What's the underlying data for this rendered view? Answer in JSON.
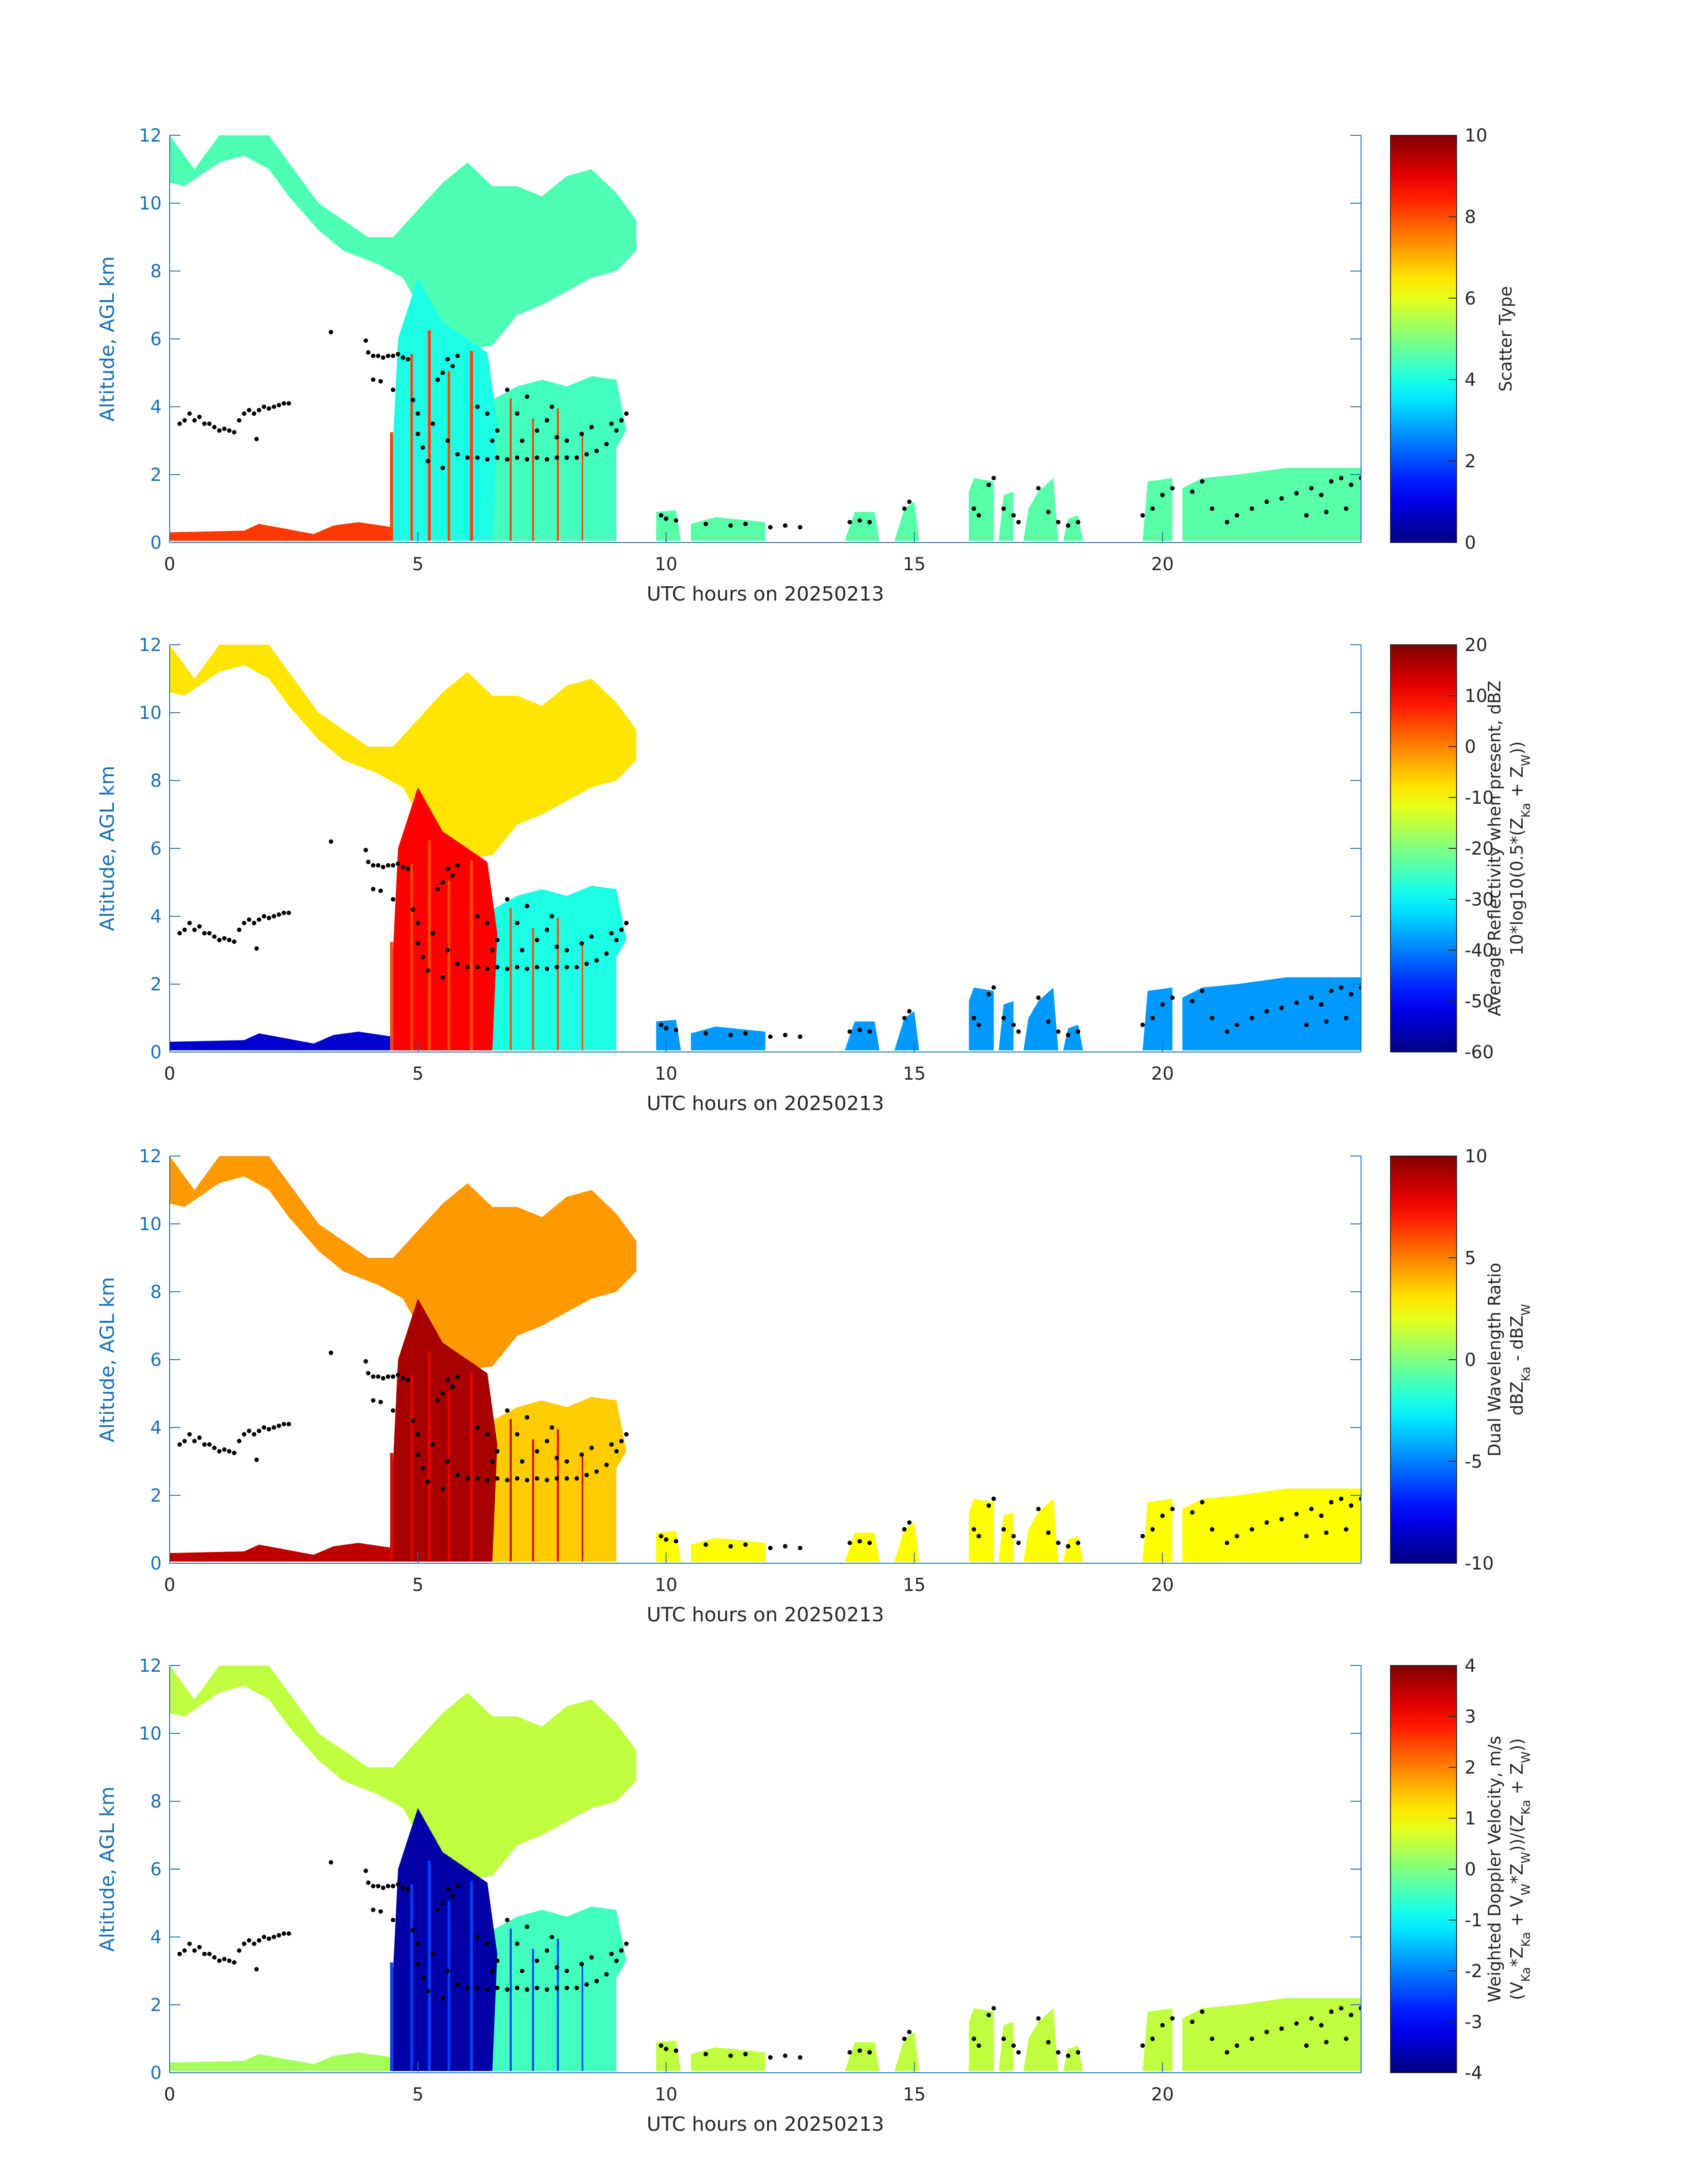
{
  "figure": {
    "axis_color": "#1a6fb0",
    "text_color": "#262626",
    "colormap": "jet"
  },
  "chart_data": [
    {
      "type": "heatmap",
      "title": "",
      "xlabel": "UTC hours on 20250213",
      "ylabel": "Altitude, AGL km",
      "xlim": [
        0,
        24
      ],
      "ylim": [
        0,
        12
      ],
      "xticks": [
        0,
        5,
        10,
        15,
        20
      ],
      "yticks": [
        0,
        2,
        4,
        6,
        8,
        10,
        12
      ],
      "colorbar": {
        "label_lines": [
          "Scatter Type"
        ],
        "clim": [
          0,
          10
        ],
        "ticks": [
          0,
          2,
          4,
          6,
          8,
          10
        ]
      },
      "fields": {
        "upper_cloud": 4.5,
        "lower_cloud": 4.4,
        "precip_shafts": 4.0,
        "surface_layer": 8.2,
        "shaft_streaks": 8.1,
        "shallow_cells": 4.6
      }
    },
    {
      "type": "heatmap",
      "title": "",
      "xlabel": "UTC hours on 20250213",
      "ylabel": "Altitude, AGL km",
      "xlim": [
        0,
        24
      ],
      "ylim": [
        0,
        12
      ],
      "xticks": [
        0,
        5,
        10,
        15,
        20
      ],
      "yticks": [
        0,
        2,
        4,
        6,
        8,
        10,
        12
      ],
      "colorbar": {
        "label_lines": [
          "Average Reflectivity when present, dBZ",
          "10*log10(0.5*(Z_Ka + Z_W))"
        ],
        "clim": [
          -60,
          20
        ],
        "ticks": [
          -60,
          -50,
          -40,
          -30,
          -20,
          -10,
          0,
          10,
          20
        ]
      },
      "fields": {
        "upper_cloud": -8,
        "lower_cloud": -28,
        "precip_shafts": 10,
        "surface_layer": -54,
        "shaft_streaks": 4,
        "shallow_cells": -38
      }
    },
    {
      "type": "heatmap",
      "title": "",
      "xlabel": "UTC hours on 20250213",
      "ylabel": "Altitude, AGL km",
      "xlim": [
        0,
        24
      ],
      "ylim": [
        0,
        12
      ],
      "xticks": [
        0,
        5,
        10,
        15,
        20
      ],
      "yticks": [
        0,
        2,
        4,
        6,
        8,
        10,
        12
      ],
      "colorbar": {
        "label_lines": [
          "Dual Wavelength Ratio",
          "dBZ_Ka - dBZ_W"
        ],
        "clim": [
          -10,
          10
        ],
        "ticks": [
          -10,
          -5,
          0,
          5,
          10
        ]
      },
      "fields": {
        "upper_cloud": 4.5,
        "lower_cloud": 3.5,
        "precip_shafts": 9.2,
        "surface_layer": 8.8,
        "shaft_streaks": 8.0,
        "shallow_cells": 2.5
      }
    },
    {
      "type": "heatmap",
      "title": "",
      "xlabel": "UTC hours on 20250213",
      "ylabel": "Altitude, AGL km",
      "xlim": [
        0,
        24
      ],
      "ylim": [
        0,
        12
      ],
      "xticks": [
        0,
        5,
        10,
        15,
        20
      ],
      "yticks": [
        0,
        2,
        4,
        6,
        8,
        10,
        12
      ],
      "colorbar": {
        "label_lines": [
          "Weighted Doppler Velocity, m/s",
          "(V_Ka*Z_Ka + V_W*Z_W))/(Z_Ka + Z_W))"
        ],
        "clim": [
          -4,
          4
        ],
        "ticks": [
          -4,
          -3,
          -2,
          -1,
          0,
          1,
          2,
          3,
          4
        ]
      },
      "fields": {
        "upper_cloud": 0.5,
        "lower_cloud": -0.5,
        "precip_shafts": -3.7,
        "surface_layer": 0.3,
        "shaft_streaks": -2.5,
        "shallow_cells": 0.5
      }
    }
  ],
  "echo_regions": {
    "upper_cloud": [
      [
        0.0,
        12
      ],
      [
        0.5,
        11
      ],
      [
        1.0,
        12
      ],
      [
        2.0,
        12
      ],
      [
        2.5,
        11
      ],
      [
        3.0,
        10
      ],
      [
        3.5,
        9.5
      ],
      [
        4.0,
        9
      ],
      [
        4.5,
        9
      ],
      [
        5.0,
        9.8
      ],
      [
        5.5,
        10.6
      ],
      [
        6.0,
        11.2
      ],
      [
        6.5,
        10.5
      ],
      [
        7.0,
        10.5
      ],
      [
        7.5,
        10.2
      ],
      [
        8.0,
        10.8
      ],
      [
        8.5,
        11
      ],
      [
        9.0,
        10.3
      ],
      [
        9.4,
        9.5
      ],
      [
        9.4,
        8.6
      ],
      [
        9.0,
        8.0
      ],
      [
        8.5,
        7.8
      ],
      [
        8.0,
        7.4
      ],
      [
        7.5,
        7.0
      ],
      [
        7.0,
        6.7
      ],
      [
        6.5,
        5.8
      ],
      [
        6.0,
        5.7
      ],
      [
        5.5,
        6.2
      ],
      [
        5.0,
        7.0
      ],
      [
        4.7,
        7.8
      ],
      [
        4.2,
        8.2
      ],
      [
        3.5,
        8.6
      ],
      [
        3.0,
        9.2
      ],
      [
        2.4,
        10.2
      ],
      [
        2.0,
        11
      ],
      [
        1.5,
        11.4
      ],
      [
        1.0,
        11.2
      ],
      [
        0.3,
        10.5
      ],
      [
        0.0,
        10.6
      ]
    ],
    "lower_cloud": [
      [
        6.5,
        0.05
      ],
      [
        9.0,
        0.05
      ],
      [
        9.0,
        2.8
      ],
      [
        9.2,
        3.3
      ],
      [
        9.0,
        4.8
      ],
      [
        8.5,
        4.9
      ],
      [
        8.0,
        4.6
      ],
      [
        7.5,
        4.8
      ],
      [
        7.0,
        4.6
      ],
      [
        6.5,
        4.2
      ],
      [
        6.2,
        3.5
      ]
    ],
    "precip_shafts": [
      [
        4.5,
        0.05
      ],
      [
        6.5,
        0.05
      ],
      [
        6.6,
        3.5
      ],
      [
        6.4,
        5.6
      ],
      [
        6.0,
        6.0
      ],
      [
        5.5,
        6.5
      ],
      [
        5.0,
        7.8
      ],
      [
        4.6,
        6.0
      ],
      [
        4.5,
        3.0
      ]
    ],
    "surface_layer": [
      [
        0.0,
        0.05
      ],
      [
        4.5,
        0.05
      ],
      [
        4.5,
        0.45
      ],
      [
        3.8,
        0.6
      ],
      [
        3.3,
        0.5
      ],
      [
        2.9,
        0.25
      ],
      [
        1.8,
        0.55
      ],
      [
        1.5,
        0.35
      ],
      [
        0.0,
        0.3
      ]
    ],
    "shaft_streaks": [
      [
        4.44,
        0.05,
        0.06,
        3.2
      ],
      [
        4.85,
        0.05,
        0.05,
        5.5
      ],
      [
        5.2,
        0.05,
        0.06,
        6.2
      ],
      [
        5.6,
        0.05,
        0.05,
        5.0
      ],
      [
        6.05,
        0.05,
        0.06,
        5.6
      ],
      [
        6.85,
        0.05,
        0.04,
        4.2
      ],
      [
        7.3,
        0.05,
        0.04,
        3.6
      ],
      [
        7.8,
        0.05,
        0.04,
        3.9
      ],
      [
        8.3,
        0.05,
        0.03,
        3.2
      ]
    ],
    "shallow_cells": [
      [
        [
          9.8,
          0.05
        ],
        [
          10.3,
          0.05
        ],
        [
          10.2,
          0.95
        ],
        [
          9.8,
          0.9
        ]
      ],
      [
        [
          10.5,
          0.05
        ],
        [
          12.0,
          0.05
        ],
        [
          12.0,
          0.6
        ],
        [
          11.0,
          0.75
        ],
        [
          10.5,
          0.55
        ]
      ],
      [
        [
          13.6,
          0.05
        ],
        [
          14.3,
          0.05
        ],
        [
          14.2,
          0.9
        ],
        [
          13.8,
          0.9
        ]
      ],
      [
        [
          14.6,
          0.05
        ],
        [
          15.1,
          0.05
        ],
        [
          15.0,
          1.2
        ],
        [
          14.8,
          1.0
        ]
      ],
      [
        [
          16.1,
          0.05
        ],
        [
          16.6,
          0.05
        ],
        [
          16.6,
          1.8
        ],
        [
          16.2,
          1.9
        ],
        [
          16.1,
          1.5
        ]
      ],
      [
        [
          16.7,
          0.05
        ],
        [
          17.0,
          0.05
        ],
        [
          17.0,
          1.5
        ],
        [
          16.8,
          1.4
        ]
      ],
      [
        [
          17.2,
          0.05
        ],
        [
          17.9,
          0.05
        ],
        [
          17.8,
          1.9
        ],
        [
          17.5,
          1.5
        ],
        [
          17.3,
          1.0
        ]
      ],
      [
        [
          18.0,
          0.05
        ],
        [
          18.4,
          0.05
        ],
        [
          18.3,
          0.8
        ],
        [
          18.1,
          0.7
        ]
      ],
      [
        [
          19.6,
          0.05
        ],
        [
          20.2,
          0.05
        ],
        [
          20.2,
          1.9
        ],
        [
          19.7,
          1.8
        ]
      ],
      [
        [
          20.4,
          0.05
        ],
        [
          24.0,
          0.05
        ],
        [
          24.0,
          2.2
        ],
        [
          22.5,
          2.2
        ],
        [
          21.5,
          2.0
        ],
        [
          20.8,
          1.9
        ],
        [
          20.4,
          1.6
        ]
      ]
    ]
  },
  "cloud_base_dots": [
    [
      0.2,
      3.5
    ],
    [
      0.3,
      3.6
    ],
    [
      0.4,
      3.8
    ],
    [
      0.5,
      3.6
    ],
    [
      0.6,
      3.7
    ],
    [
      0.7,
      3.5
    ],
    [
      0.8,
      3.5
    ],
    [
      0.9,
      3.4
    ],
    [
      1.0,
      3.3
    ],
    [
      1.1,
      3.35
    ],
    [
      1.2,
      3.3
    ],
    [
      1.3,
      3.25
    ],
    [
      1.4,
      3.6
    ],
    [
      1.5,
      3.8
    ],
    [
      1.6,
      3.9
    ],
    [
      1.7,
      3.8
    ],
    [
      1.8,
      3.9
    ],
    [
      1.9,
      4.0
    ],
    [
      2.0,
      3.95
    ],
    [
      2.1,
      4.0
    ],
    [
      2.2,
      4.05
    ],
    [
      2.3,
      4.1
    ],
    [
      2.4,
      4.1
    ],
    [
      1.75,
      3.05
    ],
    [
      3.25,
      6.2
    ],
    [
      3.95,
      5.95
    ],
    [
      4.0,
      5.6
    ],
    [
      4.1,
      5.5
    ],
    [
      4.2,
      5.5
    ],
    [
      4.3,
      5.45
    ],
    [
      4.4,
      5.5
    ],
    [
      4.5,
      5.5
    ],
    [
      4.6,
      5.55
    ],
    [
      4.7,
      5.45
    ],
    [
      4.8,
      5.4
    ],
    [
      4.1,
      4.8
    ],
    [
      4.25,
      4.75
    ],
    [
      4.5,
      4.5
    ],
    [
      4.9,
      4.2
    ],
    [
      5.0,
      3.8
    ],
    [
      5.0,
      3.2
    ],
    [
      5.1,
      2.8
    ],
    [
      5.2,
      2.4
    ],
    [
      5.3,
      3.5
    ],
    [
      5.4,
      4.8
    ],
    [
      5.5,
      5.0
    ],
    [
      5.6,
      5.4
    ],
    [
      5.7,
      5.2
    ],
    [
      5.8,
      5.5
    ],
    [
      5.5,
      2.2
    ],
    [
      5.6,
      3.0
    ],
    [
      5.8,
      2.6
    ],
    [
      6.0,
      2.5
    ],
    [
      6.2,
      2.5
    ],
    [
      6.4,
      2.45
    ],
    [
      6.6,
      2.5
    ],
    [
      6.8,
      2.45
    ],
    [
      7.0,
      2.5
    ],
    [
      7.2,
      2.45
    ],
    [
      7.4,
      2.5
    ],
    [
      7.6,
      2.45
    ],
    [
      7.8,
      2.5
    ],
    [
      8.0,
      2.5
    ],
    [
      8.2,
      2.5
    ],
    [
      8.4,
      2.6
    ],
    [
      8.6,
      2.7
    ],
    [
      8.8,
      2.9
    ],
    [
      9.0,
      3.3
    ],
    [
      9.1,
      3.6
    ],
    [
      9.2,
      3.8
    ],
    [
      6.2,
      4.0
    ],
    [
      6.4,
      3.8
    ],
    [
      6.6,
      3.3
    ],
    [
      6.8,
      4.5
    ],
    [
      7.0,
      3.8
    ],
    [
      7.2,
      4.3
    ],
    [
      7.4,
      3.3
    ],
    [
      7.6,
      3.6
    ],
    [
      7.8,
      3.1
    ],
    [
      8.0,
      3.0
    ],
    [
      8.3,
      3.2
    ],
    [
      6.5,
      3.0
    ],
    [
      7.1,
      3.0
    ],
    [
      7.7,
      4.0
    ],
    [
      8.5,
      3.4
    ],
    [
      8.9,
      3.5
    ],
    [
      9.9,
      0.8
    ],
    [
      10.0,
      0.7
    ],
    [
      10.2,
      0.65
    ],
    [
      10.8,
      0.55
    ],
    [
      11.3,
      0.5
    ],
    [
      11.6,
      0.55
    ],
    [
      12.1,
      0.45
    ],
    [
      12.4,
      0.5
    ],
    [
      12.7,
      0.45
    ],
    [
      13.7,
      0.6
    ],
    [
      13.9,
      0.65
    ],
    [
      14.1,
      0.6
    ],
    [
      14.8,
      1.0
    ],
    [
      14.9,
      1.2
    ],
    [
      16.2,
      1.0
    ],
    [
      16.3,
      0.8
    ],
    [
      16.5,
      1.7
    ],
    [
      16.6,
      1.9
    ],
    [
      16.8,
      1.0
    ],
    [
      17.0,
      0.8
    ],
    [
      17.1,
      0.6
    ],
    [
      17.5,
      1.6
    ],
    [
      17.7,
      0.9
    ],
    [
      17.9,
      0.6
    ],
    [
      18.1,
      0.5
    ],
    [
      18.3,
      0.6
    ],
    [
      19.6,
      0.8
    ],
    [
      19.8,
      1.0
    ],
    [
      20.0,
      1.4
    ],
    [
      20.2,
      1.6
    ],
    [
      20.6,
      1.5
    ],
    [
      20.8,
      1.8
    ],
    [
      21.0,
      1.0
    ],
    [
      21.3,
      0.6
    ],
    [
      21.5,
      0.8
    ],
    [
      21.8,
      1.0
    ],
    [
      22.1,
      1.2
    ],
    [
      22.4,
      1.3
    ],
    [
      22.7,
      1.45
    ],
    [
      23.0,
      1.6
    ],
    [
      23.2,
      1.4
    ],
    [
      23.4,
      1.8
    ],
    [
      23.6,
      1.9
    ],
    [
      23.8,
      1.7
    ],
    [
      24.0,
      1.9
    ],
    [
      22.9,
      0.8
    ],
    [
      23.3,
      0.9
    ],
    [
      23.7,
      1.0
    ]
  ]
}
